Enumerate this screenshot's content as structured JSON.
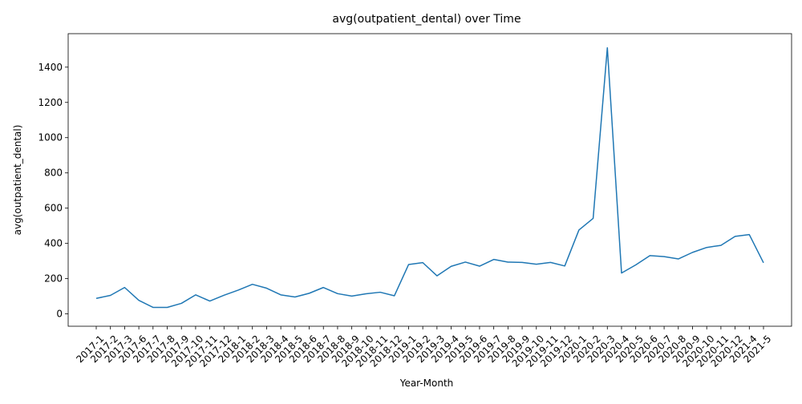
{
  "chart_data": {
    "type": "line",
    "title": "avg(outpatient_dental) over Time",
    "xlabel": "Year-Month",
    "ylabel": "avg(outpatient_dental)",
    "grid": false,
    "line_color": "#1f77b4",
    "ylim": [
      -70,
      1590
    ],
    "yticks": [
      0,
      200,
      400,
      600,
      800,
      1000,
      1200,
      1400
    ],
    "categories": [
      "2017-1",
      "2017-2",
      "2017-3",
      "2017-6",
      "2017-7",
      "2017-8",
      "2017-9",
      "2017-10",
      "2017-11",
      "2017-12",
      "2018-1",
      "2018-2",
      "2018-3",
      "2018-4",
      "2018-5",
      "2018-6",
      "2018-7",
      "2018-8",
      "2018-9",
      "2018-10",
      "2018-11",
      "2018-12",
      "2019-1",
      "2019-2",
      "2019-3",
      "2019-4",
      "2019-5",
      "2019-6",
      "2019-7",
      "2019-8",
      "2019-9",
      "2019-10",
      "2019-11",
      "2019-12",
      "2020-1",
      "2020-2",
      "2020-3",
      "2020-4",
      "2020-5",
      "2020-6",
      "2020-7",
      "2020-8",
      "2020-9",
      "2020-10",
      "2020-11",
      "2020-12",
      "2021-4",
      "2021-5"
    ],
    "series": [
      {
        "values": [
          88,
          105,
          150,
          77,
          37,
          37,
          60,
          108,
          73,
          106,
          135,
          168,
          146,
          108,
          96,
          117,
          150,
          115,
          101,
          114,
          123,
          103,
          280,
          291,
          216,
          270,
          294,
          271,
          309,
          294,
          292,
          282,
          292,
          272,
          476,
          542,
          1510,
          232,
          278,
          331,
          325,
          312,
          349,
          377,
          389,
          440,
          450,
          290
        ]
      }
    ]
  }
}
